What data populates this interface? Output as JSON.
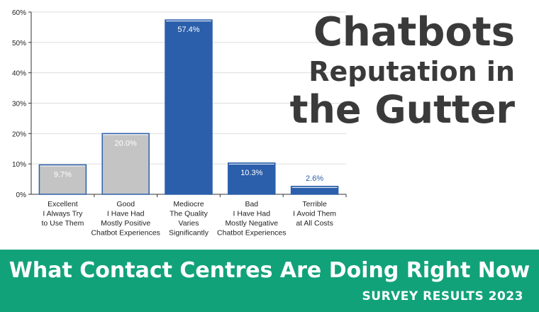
{
  "title": {
    "line1": "Chatbots",
    "line2": "Reputation in",
    "line3": "the Gutter"
  },
  "banner": {
    "headline": "What Contact Centres Are Doing Right Now",
    "subheadline": "SURVEY RESULTS 2023"
  },
  "chart_data": {
    "type": "bar",
    "categories": [
      [
        "Excellent",
        "I Always Try",
        "to Use Them"
      ],
      [
        "Good",
        "I Have Had",
        "Mostly Positive",
        "Chatbot Experiences"
      ],
      [
        "Mediocre",
        "The Quality",
        "Varies",
        "Significantly"
      ],
      [
        "Bad",
        "I Have Had",
        "Mostly Negative",
        "Chatbot Experiences"
      ],
      [
        "Terrible",
        "I Avoid Them",
        "at All Costs"
      ]
    ],
    "values": [
      9.7,
      20.0,
      57.4,
      10.3,
      2.6
    ],
    "value_labels": [
      "9.7%",
      "20.0%",
      "57.4%",
      "10.3%",
      "2.6%"
    ],
    "bar_colors": [
      "#c4c4c4",
      "#c4c4c4",
      "#2b5fab",
      "#2b5fab",
      "#2b5fab"
    ],
    "yticks": [
      "0%",
      "10%",
      "20%",
      "30%",
      "40%",
      "50%",
      "60%"
    ],
    "ylim": [
      0,
      60
    ],
    "grid": true,
    "colors": {
      "axis": "#333333",
      "grid": "#dddddd",
      "label_in_bar": "#ffffff",
      "label_above_bar": "#2b5fab",
      "tick_text": "#222222"
    }
  }
}
